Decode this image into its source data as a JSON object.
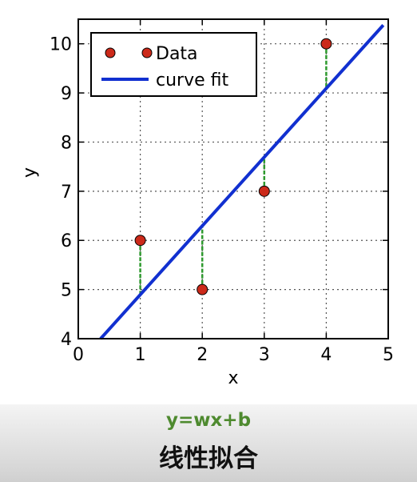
{
  "chart_data": {
    "type": "scatter",
    "title": "",
    "xlabel": "x",
    "ylabel": "y",
    "xlim": [
      0,
      5
    ],
    "ylim": [
      4,
      10.5
    ],
    "xticks": [
      0,
      1,
      2,
      3,
      4,
      5
    ],
    "yticks": [
      4,
      5,
      6,
      7,
      8,
      9,
      10
    ],
    "grid": true,
    "legend_position": "top-left",
    "points": {
      "name": "Data",
      "x": [
        1,
        2,
        3,
        4
      ],
      "y": [
        6,
        5,
        7,
        10
      ],
      "color": "#cc2a1a"
    },
    "fit_line": {
      "name": "curve fit",
      "x": [
        0.36,
        4.92
      ],
      "y": [
        4.0,
        10.38
      ],
      "color": "#1130d0"
    },
    "residual_color": "#2e9a2e"
  },
  "caption": {
    "formula": "y=wx+b",
    "subtitle": "线性拟合"
  }
}
